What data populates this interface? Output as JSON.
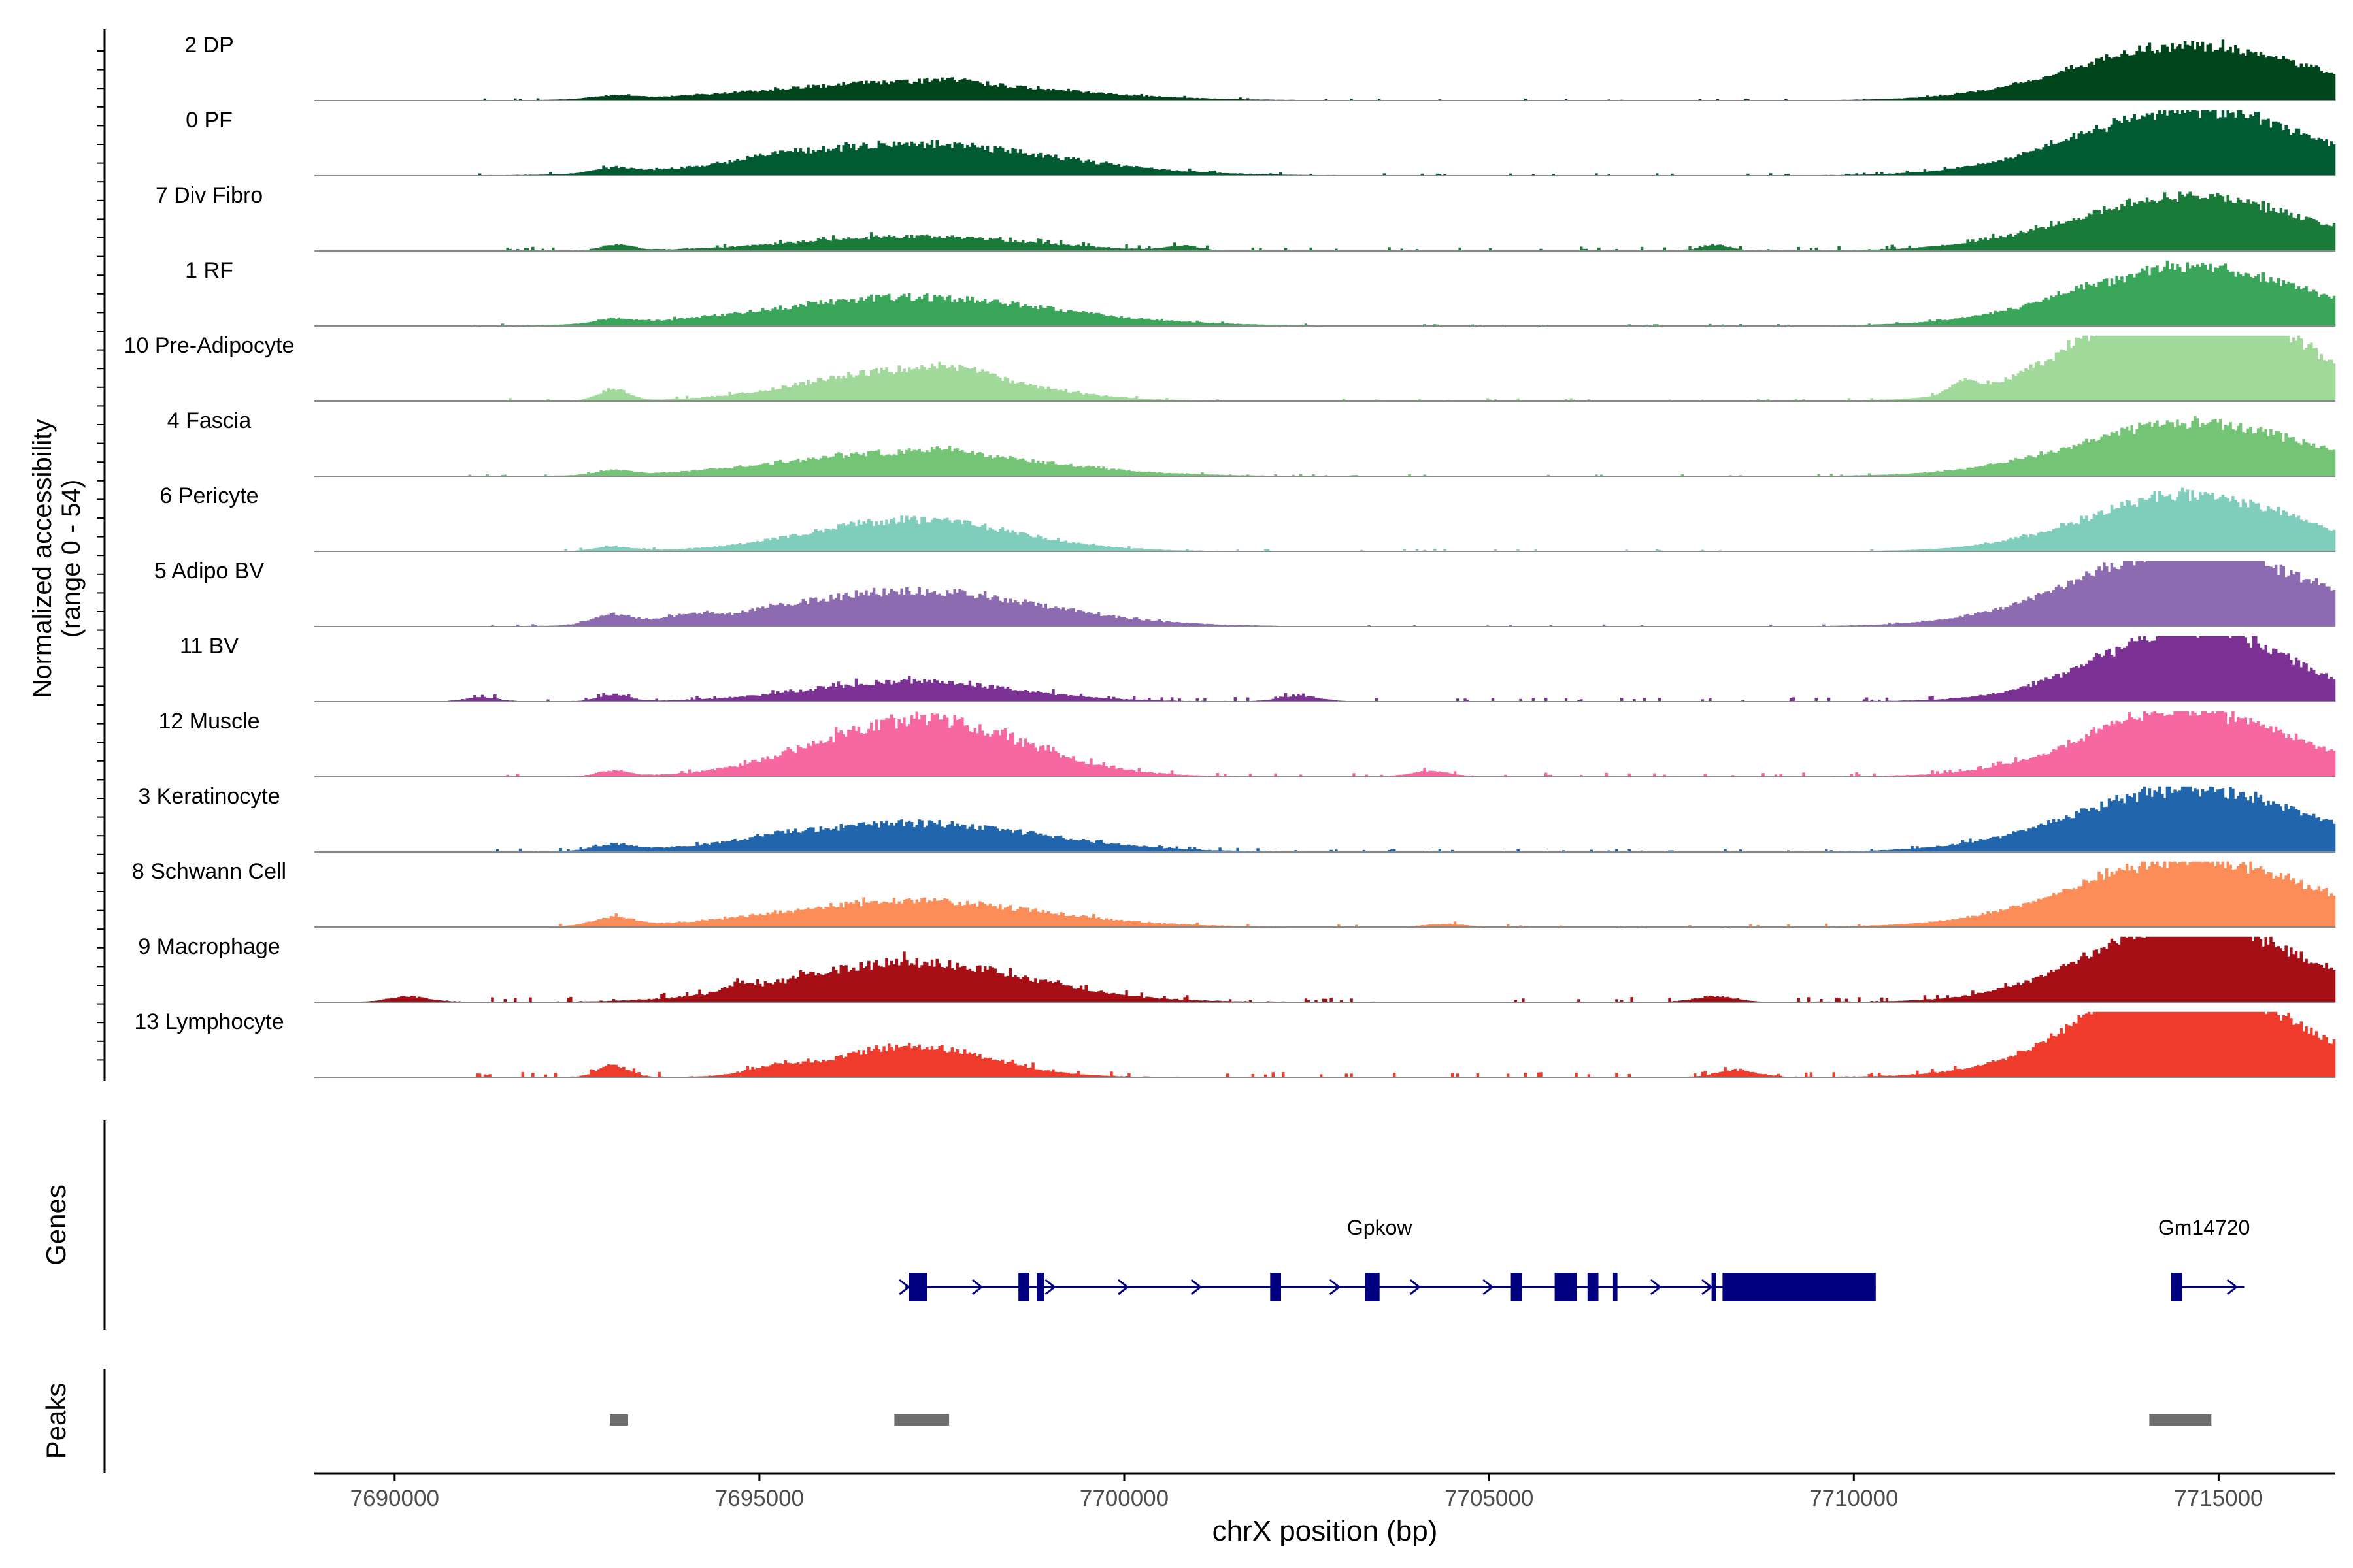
{
  "chart_data": {
    "type": "area",
    "title": "",
    "ylabel_line1": "Normalized accessibility",
    "ylabel_line2": "(range 0 - 54)",
    "y_range": [
      0,
      54
    ],
    "xlabel": "chrX position (bp)",
    "xlim": [
      7688900,
      7716600
    ],
    "x_ticks": [
      7690000,
      7695000,
      7700000,
      7705000,
      7710000,
      7715000
    ],
    "x_tick_labels": [
      "7690000",
      "7695000",
      "7700000",
      "7705000",
      "7710000",
      "7715000"
    ],
    "genes_label": "Genes",
    "peaks_label": "Peaks",
    "tracks": [
      {
        "name": "2 DP",
        "color": "#00441b",
        "noise": 0.018,
        "spread": 0.5,
        "peaks": [
          [
            7697100,
            55,
            0.32
          ],
          [
            7714500,
            45,
            0.45
          ],
          [
            7714800,
            45,
            0.52
          ],
          [
            7693000,
            8,
            0.06
          ],
          [
            7697600,
            8,
            0.06
          ]
        ]
      },
      {
        "name": "0 PF",
        "color": "#005a32",
        "noise": 0.025,
        "spread": 0.7,
        "peaks": [
          [
            7697100,
            55,
            0.55
          ],
          [
            7714500,
            45,
            0.45
          ],
          [
            7714800,
            45,
            0.72
          ],
          [
            7693000,
            8,
            0.09
          ],
          [
            7695200,
            10,
            0.05
          ]
        ]
      },
      {
        "name": "7 Div Fibro",
        "color": "#1a7a3a",
        "noise": 0.045,
        "spread": 0.95,
        "peaks": [
          [
            7697100,
            45,
            0.25
          ],
          [
            7714400,
            45,
            0.4
          ],
          [
            7714800,
            45,
            0.55
          ],
          [
            7693050,
            6,
            0.1
          ],
          [
            7700800,
            6,
            0.08
          ],
          [
            7708100,
            6,
            0.1
          ]
        ]
      },
      {
        "name": "1 RF",
        "color": "#3aa65a",
        "noise": 0.02,
        "spread": 0.55,
        "peaks": [
          [
            7697100,
            55,
            0.5
          ],
          [
            7714400,
            45,
            0.45
          ],
          [
            7714800,
            45,
            0.6
          ],
          [
            7693000,
            7,
            0.08
          ]
        ]
      },
      {
        "name": "10 Pre-Adipocyte",
        "color": "#a1d99b",
        "noise": 0.03,
        "spread": 0.75,
        "peaks": [
          [
            7697100,
            40,
            0.55
          ],
          [
            7714400,
            40,
            0.9
          ],
          [
            7714750,
            40,
            1.0
          ],
          [
            7693000,
            6,
            0.2
          ],
          [
            7711500,
            5,
            0.2
          ],
          [
            7697700,
            10,
            0.1
          ]
        ]
      },
      {
        "name": "4 Fascia",
        "color": "#74c476",
        "noise": 0.02,
        "spread": 0.55,
        "peaks": [
          [
            7697100,
            50,
            0.42
          ],
          [
            7714400,
            45,
            0.35
          ],
          [
            7714800,
            45,
            0.6
          ],
          [
            7693000,
            7,
            0.08
          ],
          [
            7697600,
            8,
            0.08
          ]
        ]
      },
      {
        "name": "6 Pericyte",
        "color": "#7fcdbb",
        "noise": 0.025,
        "spread": 0.65,
        "peaks": [
          [
            7697100,
            40,
            0.55
          ],
          [
            7714400,
            40,
            0.45
          ],
          [
            7714800,
            40,
            0.55
          ],
          [
            7693000,
            7,
            0.08
          ]
        ]
      },
      {
        "name": "5 Adipo BV",
        "color": "#8c6bb1",
        "noise": 0.02,
        "spread": 0.5,
        "peaks": [
          [
            7697100,
            50,
            0.62
          ],
          [
            7714400,
            45,
            0.5
          ],
          [
            7714800,
            45,
            0.85
          ],
          [
            7693000,
            8,
            0.18
          ],
          [
            7694000,
            8,
            0.1
          ],
          [
            7715300,
            8,
            0.08
          ]
        ]
      },
      {
        "name": "11 BV",
        "color": "#7b3294",
        "noise": 0.04,
        "spread": 0.9,
        "peaks": [
          [
            7697100,
            40,
            0.35
          ],
          [
            7714400,
            40,
            0.4
          ],
          [
            7714750,
            35,
            0.9
          ],
          [
            7693000,
            6,
            0.12
          ],
          [
            7702400,
            8,
            0.1
          ],
          [
            7691200,
            6,
            0.08
          ]
        ]
      },
      {
        "name": "12 Muscle",
        "color": "#f768a1",
        "noise": 0.045,
        "spread": 0.9,
        "peaks": [
          [
            7697200,
            40,
            1.0
          ],
          [
            7714300,
            40,
            0.4
          ],
          [
            7714800,
            40,
            0.75
          ],
          [
            7693000,
            6,
            0.1
          ],
          [
            7704200,
            8,
            0.1
          ],
          [
            7713600,
            8,
            0.1
          ]
        ]
      },
      {
        "name": "3 Keratinocyte",
        "color": "#2166ac",
        "noise": 0.03,
        "spread": 0.85,
        "peaks": [
          [
            7697100,
            50,
            0.5
          ],
          [
            7714400,
            45,
            0.45
          ],
          [
            7714800,
            45,
            0.65
          ],
          [
            7693000,
            8,
            0.1
          ],
          [
            7695300,
            10,
            0.05
          ]
        ]
      },
      {
        "name": "8 Schwann Cell",
        "color": "#fc8d59",
        "noise": 0.028,
        "spread": 0.7,
        "peaks": [
          [
            7697100,
            50,
            0.45
          ],
          [
            7714400,
            45,
            0.45
          ],
          [
            7714800,
            45,
            0.75
          ],
          [
            7693000,
            8,
            0.15
          ],
          [
            7704400,
            8,
            0.05
          ]
        ]
      },
      {
        "name": "9 Macrophage",
        "color": "#a50f15",
        "noise": 0.05,
        "spread": 0.95,
        "peaks": [
          [
            7697100,
            45,
            0.7
          ],
          [
            7714400,
            40,
            0.45
          ],
          [
            7714800,
            40,
            0.95
          ],
          [
            7690200,
            8,
            0.1
          ],
          [
            7694700,
            6,
            0.1
          ],
          [
            7708100,
            8,
            0.1
          ]
        ]
      },
      {
        "name": "13 Lymphocyte",
        "color": "#ef3b2c",
        "noise": 0.05,
        "spread": 0.85,
        "peaks": [
          [
            7697100,
            30,
            0.55
          ],
          [
            7714400,
            40,
            0.9
          ],
          [
            7714800,
            40,
            0.8
          ],
          [
            7693000,
            6,
            0.2
          ],
          [
            7695200,
            10,
            0.12
          ],
          [
            7713600,
            12,
            0.2
          ],
          [
            7708400,
            8,
            0.12
          ]
        ]
      }
    ],
    "genes": [
      {
        "name": "Gpkow",
        "start": 7697000,
        "end": 7710300,
        "label_x": 7703500,
        "exons": [
          [
            7697050,
            7697300
          ],
          [
            7698550,
            7698700
          ],
          [
            7698800,
            7698900
          ],
          [
            7702000,
            7702150
          ],
          [
            7703300,
            7703500
          ],
          [
            7705300,
            7705450
          ],
          [
            7705900,
            7706200
          ],
          [
            7706350,
            7706500
          ],
          [
            7706700,
            7706760
          ],
          [
            7708050,
            7708110
          ],
          [
            7708200,
            7710300
          ]
        ],
        "arrows": [
          7697000,
          7698000,
          7699000,
          7700000,
          7701000,
          7702900,
          7704000,
          7705000,
          7707300,
          7708000
        ]
      },
      {
        "name": "Gm14720",
        "start": 7714400,
        "end": 7715350,
        "label_x": 7714800,
        "exons": [
          [
            7714350,
            7714500
          ]
        ],
        "arrows": [
          7715200
        ]
      }
    ],
    "peak_regions": [
      [
        7692950,
        7693200
      ],
      [
        7696850,
        7697600
      ],
      [
        7714050,
        7714900
      ]
    ]
  }
}
